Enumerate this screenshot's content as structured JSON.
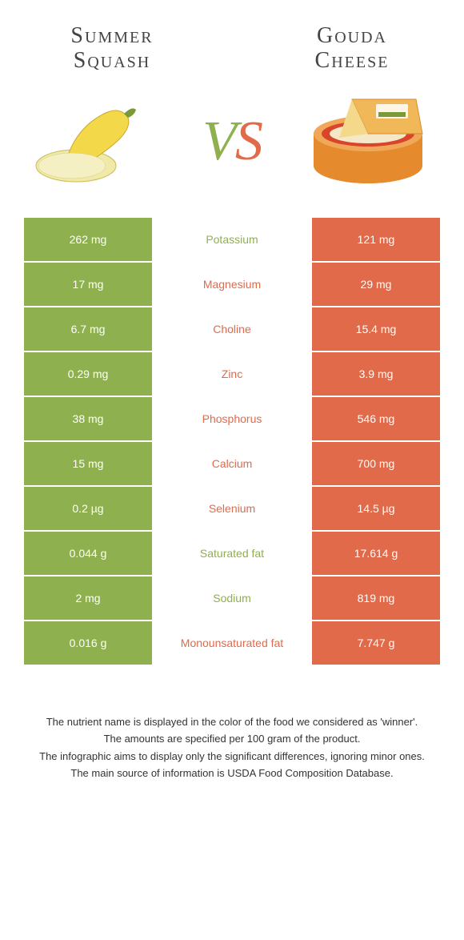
{
  "colors": {
    "green": "#8fb04e",
    "orange": "#e06a4a",
    "text": "#444444",
    "white": "#ffffff"
  },
  "left": {
    "title_line1": "Summer",
    "title_line2": "Squash"
  },
  "right": {
    "title_line1": "Gouda",
    "title_line2": "Cheese"
  },
  "vs": {
    "v": "V",
    "s": "S"
  },
  "rows": [
    {
      "left": "262 mg",
      "label": "Potassium",
      "right": "121 mg",
      "winner": "left"
    },
    {
      "left": "17 mg",
      "label": "Magnesium",
      "right": "29 mg",
      "winner": "right"
    },
    {
      "left": "6.7 mg",
      "label": "Choline",
      "right": "15.4 mg",
      "winner": "right"
    },
    {
      "left": "0.29 mg",
      "label": "Zinc",
      "right": "3.9 mg",
      "winner": "right"
    },
    {
      "left": "38 mg",
      "label": "Phosphorus",
      "right": "546 mg",
      "winner": "right"
    },
    {
      "left": "15 mg",
      "label": "Calcium",
      "right": "700 mg",
      "winner": "right"
    },
    {
      "left": "0.2 µg",
      "label": "Selenium",
      "right": "14.5 µg",
      "winner": "right"
    },
    {
      "left": "0.044 g",
      "label": "Saturated fat",
      "right": "17.614 g",
      "winner": "left"
    },
    {
      "left": "2 mg",
      "label": "Sodium",
      "right": "819 mg",
      "winner": "left"
    },
    {
      "left": "0.016 g",
      "label": "Monounsaturated fat",
      "right": "7.747 g",
      "winner": "right"
    }
  ],
  "footer": [
    "The nutrient name is displayed in the color of the food we considered as 'winner'.",
    "The amounts are specified per 100 gram of the product.",
    "The infographic aims to display only the significant differences, ignoring minor ones.",
    "The main source of information is USDA Food Composition Database."
  ]
}
